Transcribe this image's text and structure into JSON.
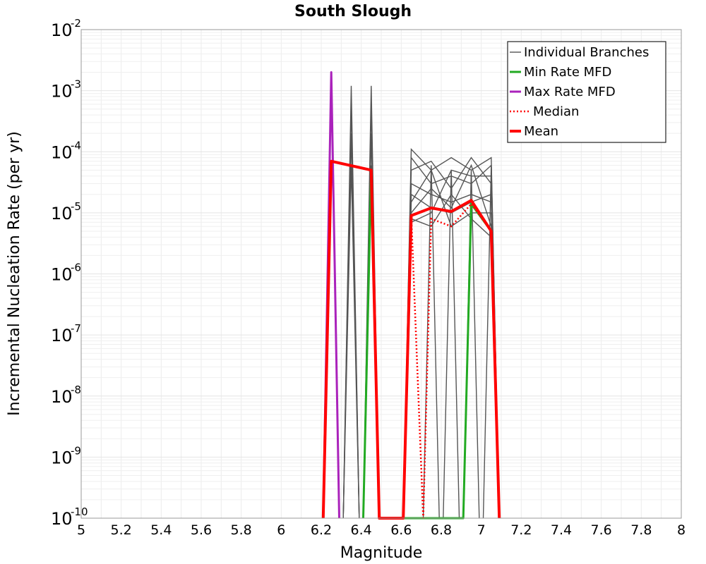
{
  "chart_data": {
    "type": "line",
    "title": "South Slough",
    "xlabel": "Magnitude",
    "ylabel": "Incremental Nucleation Rate (per yr)",
    "xlim": [
      5,
      8
    ],
    "ylim": [
      1e-10,
      0.01
    ],
    "yscale": "log",
    "grid": true,
    "legend_position": "top-right",
    "xticks": [
      "5",
      "5.2",
      "5.4",
      "5.6",
      "5.8",
      "6",
      "6.2",
      "6.4",
      "6.6",
      "6.8",
      "7",
      "7.2",
      "7.4",
      "7.6",
      "7.8",
      "8"
    ],
    "yticks": [
      {
        "base": "10",
        "exp": "-10"
      },
      {
        "base": "10",
        "exp": "-9"
      },
      {
        "base": "10",
        "exp": "-8"
      },
      {
        "base": "10",
        "exp": "-7"
      },
      {
        "base": "10",
        "exp": "-6"
      },
      {
        "base": "10",
        "exp": "-5"
      },
      {
        "base": "10",
        "exp": "-4"
      },
      {
        "base": "10",
        "exp": "-3"
      },
      {
        "base": "10",
        "exp": "-2"
      }
    ],
    "series": [
      {
        "name": "Individual Branches",
        "color": "#555555",
        "style": "thin",
        "branches": [
          {
            "x": [
              6.21,
              6.25,
              6.29
            ],
            "y": [
              1e-10,
              0.0012,
              1e-10
            ]
          },
          {
            "x": [
              6.31,
              6.35,
              6.39
            ],
            "y": [
              1e-10,
              0.0012,
              1e-10
            ]
          },
          {
            "x": [
              6.41,
              6.45,
              6.49
            ],
            "y": [
              1e-10,
              0.0012,
              1e-10
            ]
          },
          {
            "x": [
              6.31,
              6.35,
              6.39
            ],
            "y": [
              1e-10,
              0.0006,
              1e-10
            ]
          },
          {
            "x": [
              6.41,
              6.45,
              6.49
            ],
            "y": [
              1e-10,
              0.0006,
              1e-10
            ]
          },
          {
            "x": [
              6.31,
              6.35,
              6.39
            ],
            "y": [
              1e-10,
              0.0002,
              1e-10
            ]
          },
          {
            "x": [
              6.41,
              6.45,
              6.49
            ],
            "y": [
              1e-10,
              0.0002,
              1e-10
            ]
          },
          {
            "x": [
              6.31,
              6.35,
              6.39
            ],
            "y": [
              1e-10,
              6e-05,
              1e-10
            ]
          },
          {
            "x": [
              6.41,
              6.45,
              6.49
            ],
            "y": [
              1e-10,
              6e-05,
              1e-10
            ]
          },
          {
            "x": [
              6.61,
              6.65,
              6.75,
              6.85,
              6.95,
              7.05,
              7.09
            ],
            "y": [
              1e-10,
              0.00011,
              5e-05,
              8e-05,
              5e-05,
              8e-05,
              1e-10
            ]
          },
          {
            "x": [
              6.61,
              6.65,
              6.75,
              6.85,
              6.95,
              7.05,
              7.09
            ],
            "y": [
              1e-10,
              8e-05,
              3e-05,
              4e-05,
              3e-05,
              6e-05,
              1e-10
            ]
          },
          {
            "x": [
              6.61,
              6.65,
              6.75,
              6.85,
              6.95,
              7.05,
              7.09
            ],
            "y": [
              1e-10,
              5e-05,
              7e-05,
              2.5e-05,
              8e-05,
              3e-05,
              1e-10
            ]
          },
          {
            "x": [
              6.61,
              6.65,
              6.75,
              6.85,
              6.95,
              7.05,
              7.09
            ],
            "y": [
              1e-10,
              3e-05,
              2e-05,
              1.5e-05,
              2e-05,
              1.5e-05,
              1e-10
            ]
          },
          {
            "x": [
              6.61,
              6.65,
              6.75,
              6.85,
              6.95,
              7.05,
              7.09
            ],
            "y": [
              1e-10,
              2e-05,
              1.2e-05,
              1e-05,
              1.5e-05,
              2e-05,
              1e-10
            ]
          },
          {
            "x": [
              6.61,
              6.65,
              6.75,
              6.85,
              6.95,
              7.05,
              7.09
            ],
            "y": [
              1e-10,
              1.5e-05,
              5e-05,
              6e-06,
              1e-05,
              1e-05,
              1e-10
            ]
          },
          {
            "x": [
              6.61,
              6.65,
              6.75,
              6.85,
              6.95,
              7.05,
              7.09
            ],
            "y": [
              1e-10,
              1e-05,
              2.5e-05,
              1.2e-05,
              6e-05,
              6e-06,
              1e-10
            ]
          },
          {
            "x": [
              6.61,
              6.65,
              6.75,
              6.85,
              6.95,
              7.05,
              7.09
            ],
            "y": [
              1e-10,
              8e-06,
              6e-06,
              2e-05,
              8e-06,
              4e-06,
              1e-10
            ]
          },
          {
            "x": [
              6.61,
              6.65,
              6.75,
              6.85,
              6.95,
              7.05,
              7.09
            ],
            "y": [
              1e-10,
              7e-06,
              1e-05,
              5e-05,
              4e-05,
              4e-05,
              1e-10
            ]
          },
          {
            "x": [
              6.71,
              6.75,
              6.79
            ],
            "y": [
              1e-10,
              6e-05,
              1e-10
            ]
          },
          {
            "x": [
              6.81,
              6.85,
              6.89
            ],
            "y": [
              1e-10,
              5e-05,
              1e-10
            ]
          },
          {
            "x": [
              6.91,
              6.95,
              6.99
            ],
            "y": [
              1e-10,
              5e-05,
              1e-10
            ]
          },
          {
            "x": [
              7.01,
              7.05,
              7.09
            ],
            "y": [
              1e-10,
              6e-05,
              1e-10
            ]
          }
        ]
      },
      {
        "name": "Min Rate MFD",
        "color": "#22aa22",
        "style": "solid",
        "x": [
          6.41,
          6.45,
          6.49,
          6.91,
          6.95,
          7.05,
          7.09
        ],
        "y": [
          1e-10,
          5e-05,
          1e-10,
          1e-10,
          1.4e-05,
          5e-06,
          1e-10
        ]
      },
      {
        "name": "Max Rate MFD",
        "color": "#aa22bb",
        "style": "solid",
        "x": [
          6.21,
          6.25,
          6.29
        ],
        "y": [
          1e-10,
          0.002,
          1e-10
        ]
      },
      {
        "name": "Median",
        "color": "#ff0000",
        "style": "dotted",
        "x": [
          6.21,
          6.25,
          6.45,
          6.49,
          6.61,
          6.65,
          6.71,
          6.75,
          6.85,
          6.95,
          7.05,
          7.09
        ],
        "y": [
          1e-10,
          7e-05,
          5e-05,
          1e-10,
          1e-10,
          9e-06,
          1e-10,
          8e-06,
          6e-06,
          1.4e-05,
          5e-06,
          1e-10
        ]
      },
      {
        "name": "Mean",
        "color": "#ff0000",
        "style": "thick",
        "x": [
          6.21,
          6.25,
          6.45,
          6.49,
          6.61,
          6.65,
          6.75,
          6.85,
          6.95,
          7.05,
          7.09
        ],
        "y": [
          1e-10,
          7e-05,
          5e-05,
          1e-10,
          1e-10,
          9e-06,
          1.2e-05,
          1.05e-05,
          1.6e-05,
          5e-06,
          1e-10
        ]
      }
    ]
  }
}
